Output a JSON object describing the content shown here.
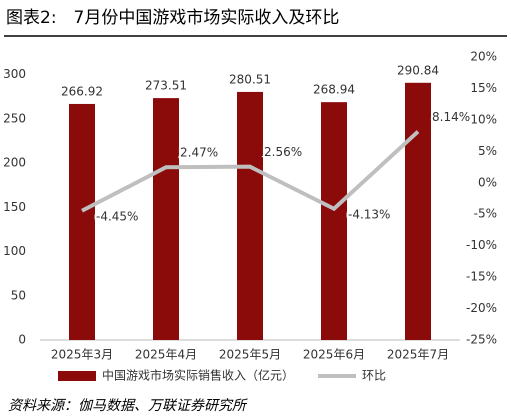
{
  "chart_data": {
    "type": "bar_line",
    "title": "图表2:　7月份中国游戏市场实际收入及环比",
    "categories": [
      "2025年3月",
      "2025年4月",
      "2025年5月",
      "2025年6月",
      "2025年7月"
    ],
    "series": [
      {
        "name": "中国游戏市场实际销售收入（亿元）",
        "type": "bar",
        "color": "#8b0a0a",
        "values": [
          266.92,
          273.51,
          280.51,
          268.94,
          290.84
        ]
      },
      {
        "name": "环比",
        "type": "line",
        "axis": "y2",
        "color": "#bfbfbf",
        "values": [
          -4.45,
          2.47,
          2.56,
          -4.13,
          8.14
        ],
        "value_labels": [
          "-4.45%",
          "2.47%",
          "2.56%",
          "-4.13%",
          "8.14%"
        ]
      }
    ],
    "ylim": [
      0,
      320
    ],
    "yticks": [
      0,
      50,
      100,
      150,
      200,
      250,
      300
    ],
    "y2lim": [
      -25,
      20
    ],
    "y2ticks": [
      {
        "value": 20,
        "label": "20%"
      },
      {
        "value": 15,
        "label": "15%"
      },
      {
        "value": 10,
        "label": "10%"
      },
      {
        "value": 5,
        "label": "5%"
      },
      {
        "value": 0,
        "label": "0%"
      },
      {
        "value": -5,
        "label": "-5%"
      },
      {
        "value": -10,
        "label": "-10%"
      },
      {
        "value": -15,
        "label": "-15%"
      },
      {
        "value": -20,
        "label": "-20%"
      },
      {
        "value": -25,
        "label": "-25%"
      }
    ],
    "legend_position": "bottom",
    "source": "资料来源：伽马数据、万联证券研究所"
  }
}
